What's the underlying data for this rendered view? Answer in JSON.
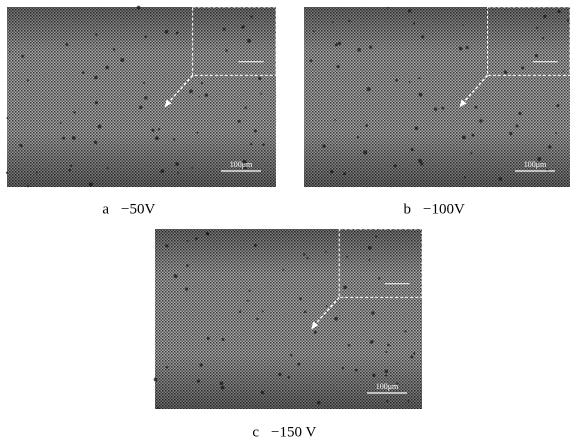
{
  "panels": [
    {
      "label": "a",
      "caption": "−50V",
      "scale_bar": "100μm"
    },
    {
      "label": "b",
      "caption": "−100V",
      "scale_bar": "100μm"
    },
    {
      "label": "c",
      "caption": "−150 V",
      "scale_bar": "100μm"
    }
  ]
}
